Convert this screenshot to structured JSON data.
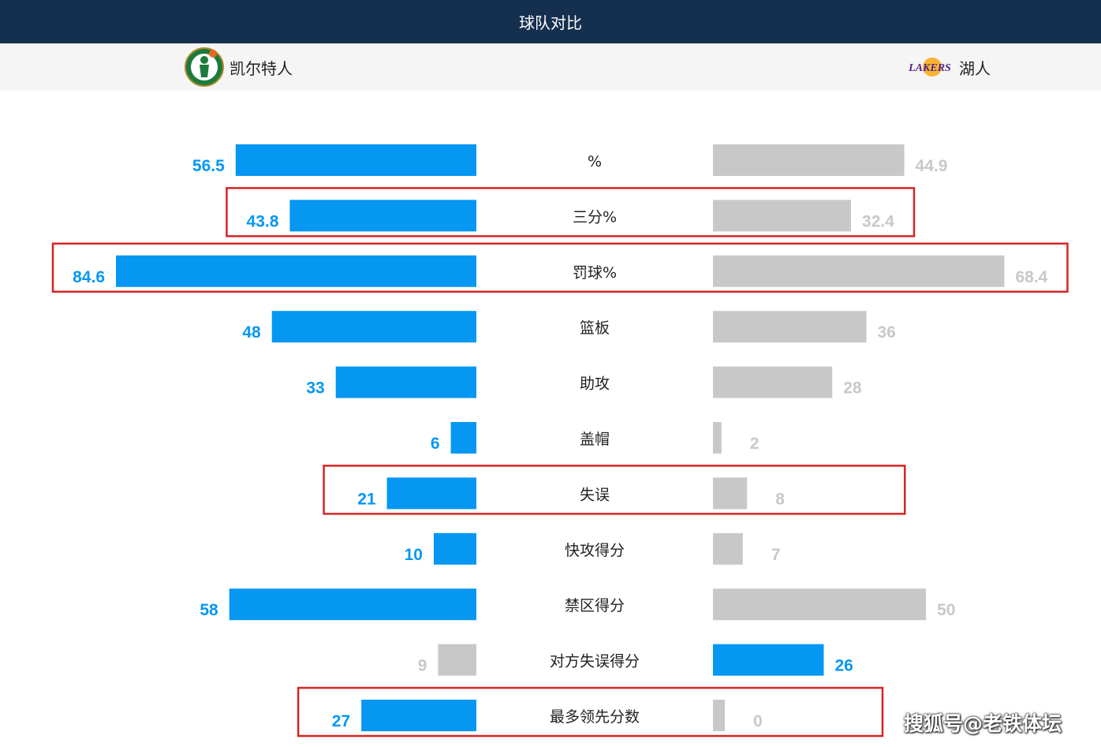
{
  "header": {
    "title": "球队对比"
  },
  "teams": {
    "left": {
      "name": "凯尔特人",
      "logo": "celtics-logo"
    },
    "right": {
      "name": "湖人",
      "logo": "lakers-logo"
    }
  },
  "colors": {
    "blue": "#0597f2",
    "gray": "#c8c8c8",
    "highlight": "#d42424",
    "header_bg": "#15304f"
  },
  "watermark": "搜狐号@老铁体坛",
  "chart_data": {
    "type": "bar",
    "orientation": "diverging-horizontal",
    "categories": [
      "%",
      "三分%",
      "罚球%",
      "篮板",
      "助攻",
      "盖帽",
      "失误",
      "快攻得分",
      "禁区得分",
      "对方失误得分",
      "最多领先分数"
    ],
    "series": [
      {
        "name": "凯尔特人",
        "values": [
          56.5,
          43.8,
          84.6,
          48,
          33,
          6,
          21,
          10,
          58,
          9,
          27
        ]
      },
      {
        "name": "湖人",
        "values": [
          44.9,
          32.4,
          68.4,
          36,
          28,
          2,
          8,
          7,
          50,
          26,
          0
        ]
      }
    ],
    "display": {
      "left": [
        "56.5",
        "43.8",
        "84.6",
        "48",
        "33",
        "6",
        "21",
        "10",
        "58",
        "9",
        "27"
      ],
      "right": [
        "44.9",
        "32.4",
        "68.4",
        "36",
        "28",
        "2",
        "8",
        "7",
        "50",
        "26",
        "0"
      ]
    },
    "leader_highlighted": [
      "left",
      "left",
      "left",
      "left",
      "left",
      "left",
      "left",
      "left",
      "left",
      "right",
      "left"
    ],
    "highlighted_categories": [
      "三分%",
      "罚球%",
      "失误",
      "最多领先分数"
    ]
  }
}
